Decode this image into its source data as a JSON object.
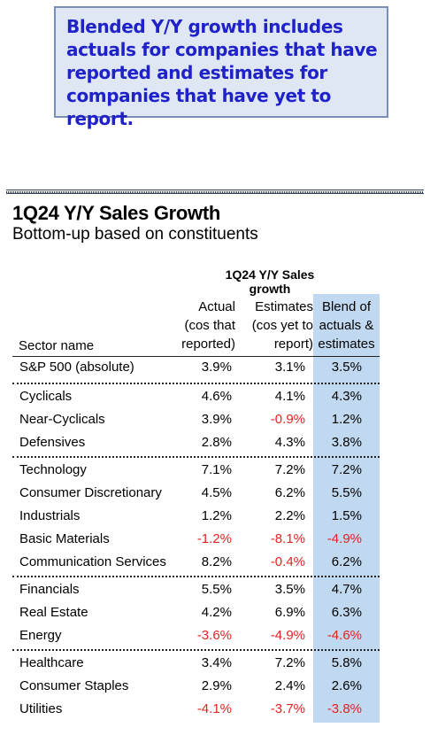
{
  "callout": {
    "text": "Blended Y/Y growth includes actuals for companies that have reported and estimates for companies that have yet to report."
  },
  "header": {
    "title": "1Q24 Y/Y Sales Growth",
    "subtitle": "Bottom-up based on constituents"
  },
  "table": {
    "group_header": "1Q24 Y/Y Sales growth",
    "sector_header": "Sector name",
    "columns": [
      [
        "Actual",
        "(cos that",
        "reported)"
      ],
      [
        "Estimates",
        "(cos yet to",
        "report)"
      ],
      [
        "Blend of",
        "actuals &",
        "estimates"
      ]
    ],
    "rows": [
      {
        "name": "S&P 500 (absolute)",
        "actual": "3.9%",
        "estimates": "3.1%",
        "blend": "3.5%"
      },
      {
        "name": "Cyclicals",
        "actual": "4.6%",
        "estimates": "4.1%",
        "blend": "4.3%"
      },
      {
        "name": "Near-Cyclicals",
        "actual": "3.9%",
        "estimates": "-0.9%",
        "blend": "1.2%"
      },
      {
        "name": "Defensives",
        "actual": "2.8%",
        "estimates": "4.3%",
        "blend": "3.8%"
      },
      {
        "name": "Technology",
        "actual": "7.1%",
        "estimates": "7.2%",
        "blend": "7.2%"
      },
      {
        "name": "Consumer Discretionary",
        "actual": "4.5%",
        "estimates": "6.2%",
        "blend": "5.5%"
      },
      {
        "name": "Industrials",
        "actual": "1.2%",
        "estimates": "2.2%",
        "blend": "1.5%"
      },
      {
        "name": "Basic Materials",
        "actual": "-1.2%",
        "estimates": "-8.1%",
        "blend": "-4.9%"
      },
      {
        "name": "Communication Services",
        "actual": "8.2%",
        "estimates": "-0.4%",
        "blend": "6.2%"
      },
      {
        "name": "Financials",
        "actual": "5.5%",
        "estimates": "3.5%",
        "blend": "4.7%"
      },
      {
        "name": "Real Estate",
        "actual": "4.2%",
        "estimates": "6.9%",
        "blend": "6.3%"
      },
      {
        "name": "Energy",
        "actual": "-3.6%",
        "estimates": "-4.9%",
        "blend": "-4.6%"
      },
      {
        "name": "Healthcare",
        "actual": "3.4%",
        "estimates": "7.2%",
        "blend": "5.8%"
      },
      {
        "name": "Consumer Staples",
        "actual": "2.9%",
        "estimates": "2.4%",
        "blend": "2.6%"
      },
      {
        "name": "Utilities",
        "actual": "-4.1%",
        "estimates": "-3.7%",
        "blend": "-3.8%"
      }
    ]
  },
  "colors": {
    "callout_text": "#1f22c9",
    "callout_bg": "#dfe7f4",
    "blend_column_bg": "#c0d9f0",
    "negative": "#e32222"
  }
}
